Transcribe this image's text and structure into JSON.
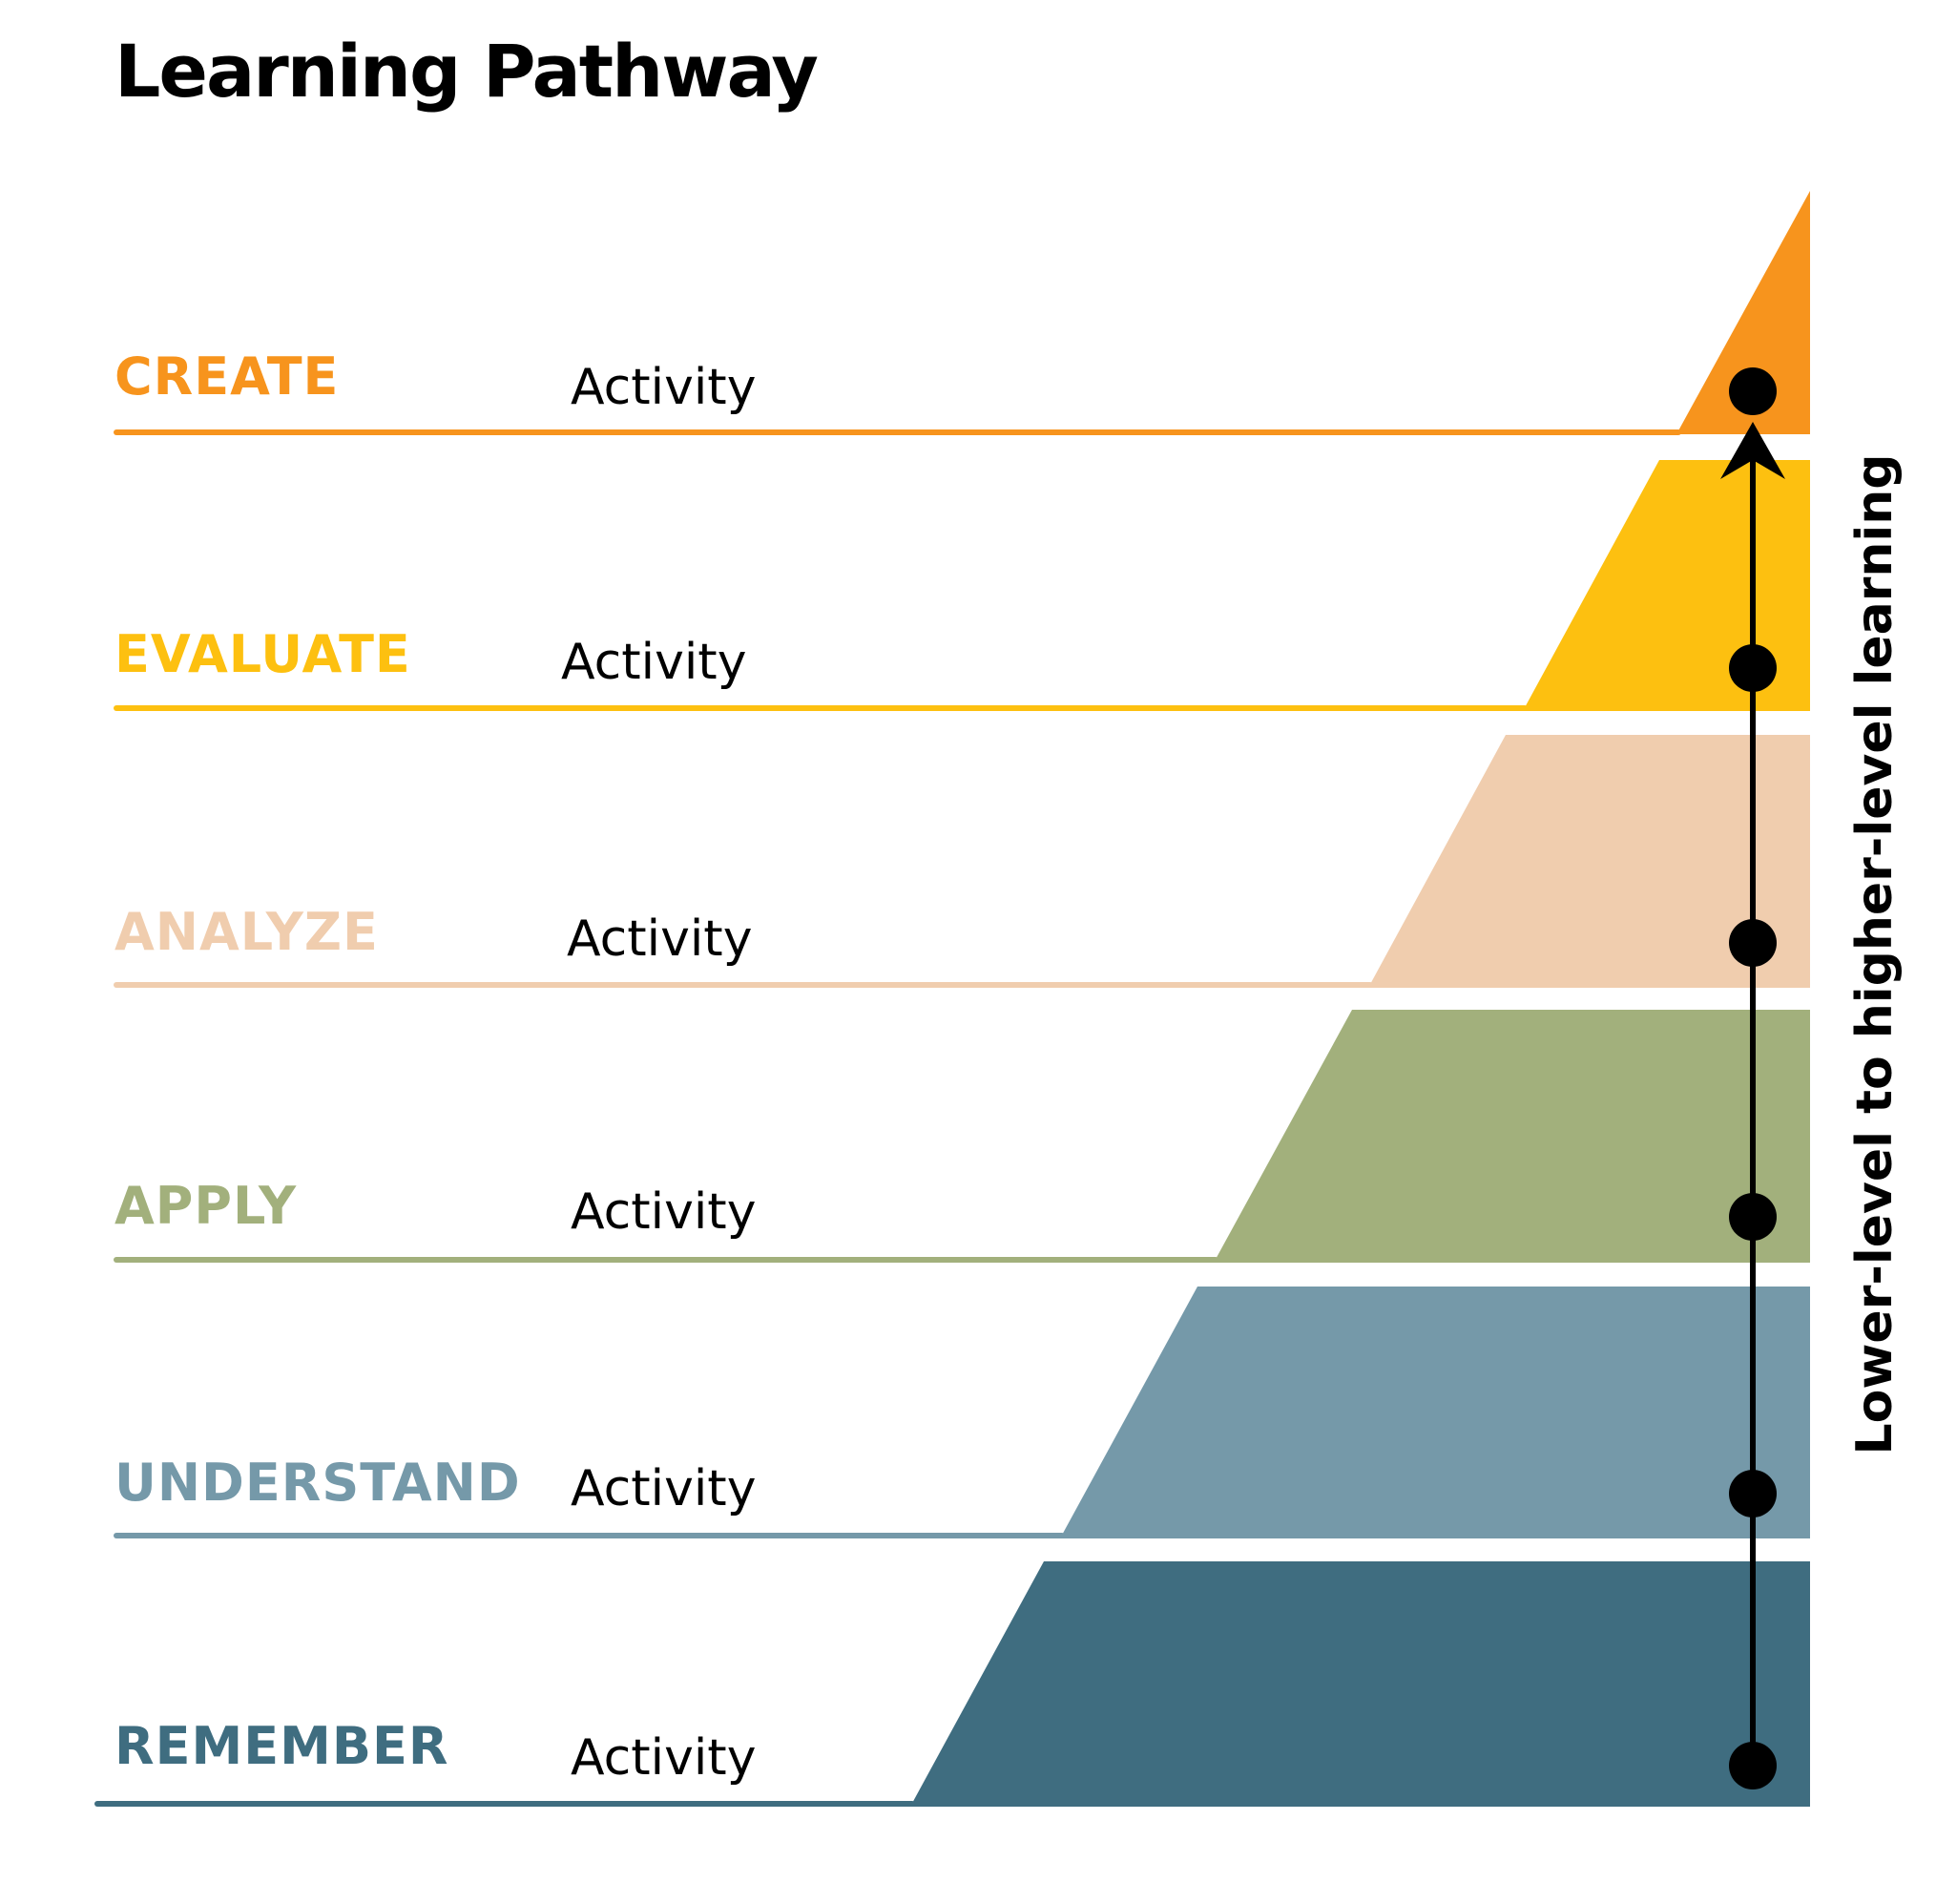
{
  "title": "Learning Pathway",
  "axis_label": "Lower-level to higher-level learning",
  "levels": [
    {
      "label": "CREATE",
      "activity": "Activity",
      "color": "#F7941D"
    },
    {
      "label": "EVALUATE",
      "activity": "Activity",
      "color": "#FDC010"
    },
    {
      "label": "ANALYZE",
      "activity": "Activity",
      "color": "#F0CDAE"
    },
    {
      "label": "APPLY",
      "activity": "Activity",
      "color": "#A2B07C"
    },
    {
      "label": "UNDERSTAND",
      "activity": "Activity",
      "color": "#7599A9"
    },
    {
      "label": "REMEMBER",
      "activity": "Activity",
      "color": "#3F6D80"
    }
  ],
  "arrow_color": "#000000"
}
